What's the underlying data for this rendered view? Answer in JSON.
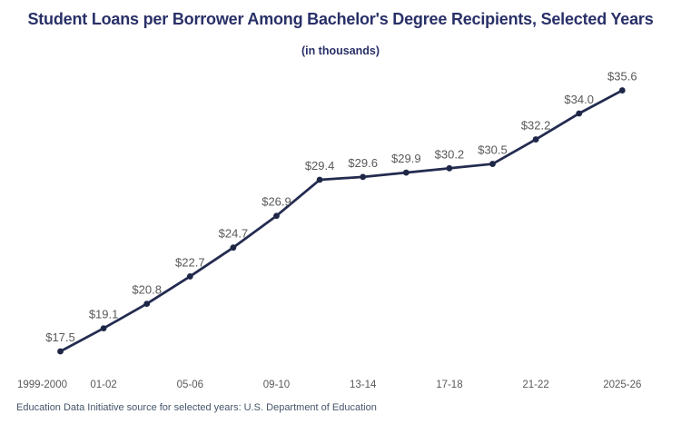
{
  "chart_data": {
    "type": "line",
    "title": "Student Loans per Borrower Among Bachelor's Degree Recipients, Selected Years",
    "subtitle": "(in thousands)",
    "source_note": "Education Data Initiative source for selected years: U.S. Department of Education",
    "values": [
      17.5,
      19.1,
      20.8,
      22.7,
      24.7,
      26.9,
      29.4,
      29.6,
      29.9,
      30.2,
      30.5,
      32.2,
      34.0,
      35.6
    ],
    "point_labels": [
      "$17.5",
      "$19.1",
      "$20.8",
      "$22.7",
      "$24.7",
      "$26.9",
      "$29.4",
      "$29.6",
      "$29.9",
      "$30.2",
      "$30.5",
      "$32.2",
      "$34.0",
      "$35.6"
    ],
    "x_ticks": [
      {
        "index": 0,
        "label": "1999-2000"
      },
      {
        "index": 1,
        "label": "01-02"
      },
      {
        "index": 3,
        "label": "05-06"
      },
      {
        "index": 5,
        "label": "09-10"
      },
      {
        "index": 7,
        "label": "13-14"
      },
      {
        "index": 9,
        "label": "17-18"
      },
      {
        "index": 11,
        "label": "21-22"
      },
      {
        "index": 13,
        "label": "2025-26"
      }
    ],
    "ylim": [
      16.5,
      37
    ],
    "grid": false,
    "legend": "none",
    "colors": {
      "line": "#232b50",
      "marker": "#1f2747",
      "title": "#293067",
      "data_label": "#595959",
      "axis_label": "#595959",
      "source": "#44546a",
      "background": "#ffffff"
    }
  }
}
